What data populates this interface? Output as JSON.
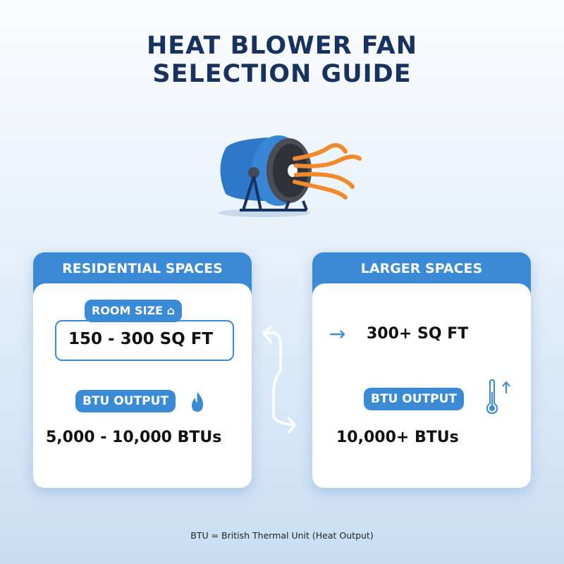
{
  "title": {
    "line1": "HEAT BLOWER FAN",
    "line2": "SELECTION GUIDE"
  },
  "colors": {
    "title": "#17325f",
    "accent": "#3a8ad6",
    "heat": "#f08a2c"
  },
  "residential": {
    "header": "RESIDENTIAL SPACES",
    "room_label": "ROOM SIZE",
    "room_icon": "house-icon",
    "room_value": "150 - 300 SQ FT",
    "btu_label": "BTU OUTPUT",
    "btu_icon": "flame-icon",
    "btu_value": "5,000 - 10,000 BTUs"
  },
  "larger": {
    "header": "LARGER SPACES",
    "room_icon": "arrow-right-icon",
    "room_value": "300+ SQ FT",
    "btu_label": "BTU OUTPUT",
    "btu_icon": "thermometer-up-icon",
    "btu_value": "10,000+ BTUs"
  },
  "footnote": "BTU = British Thermal Unit (Heat Output)"
}
